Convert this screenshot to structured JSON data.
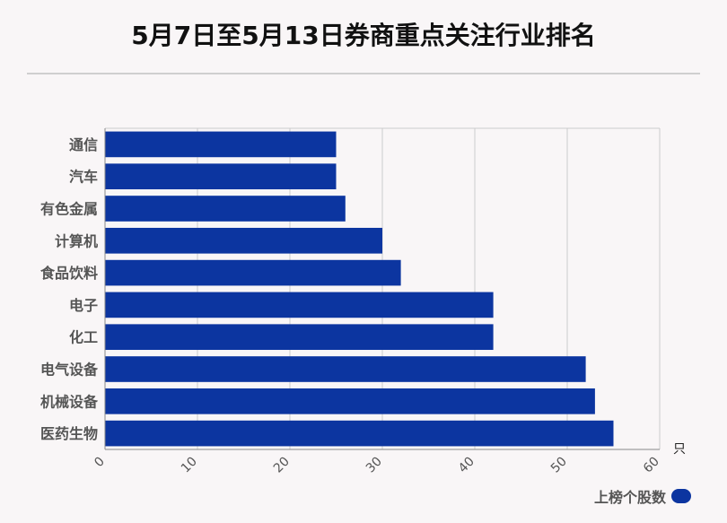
{
  "title": "5月7日至5月13日券商重点关注行业排名",
  "colors": {
    "bar": "#0c35a0",
    "grid": "#cccccc",
    "axis": "#888888",
    "label": "#555555"
  },
  "chart_data": {
    "type": "bar",
    "orientation": "horizontal",
    "categories": [
      "通信",
      "汽车",
      "有色金属",
      "计算机",
      "食品饮料",
      "电子",
      "化工",
      "电气设备",
      "机械设备",
      "医药生物"
    ],
    "series": [
      {
        "name": "上榜个股数",
        "values": [
          25,
          25,
          26,
          30,
          32,
          42,
          42,
          52,
          53,
          55
        ]
      }
    ],
    "xlim": [
      0,
      60
    ],
    "x_ticks": [
      "0",
      "10",
      "20",
      "30",
      "40",
      "50",
      "60"
    ],
    "unit_label": "只",
    "grid": true,
    "legend_position": "bottom-right"
  }
}
